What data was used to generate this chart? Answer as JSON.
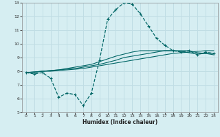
{
  "xlabel": "Humidex (Indice chaleur)",
  "background_color": "#d6eef2",
  "grid_color": "#c0dde4",
  "line_color": "#006666",
  "xlim": [
    -0.5,
    23.5
  ],
  "ylim": [
    5,
    13
  ],
  "xticks": [
    0,
    1,
    2,
    3,
    4,
    5,
    6,
    7,
    8,
    9,
    10,
    11,
    12,
    13,
    14,
    15,
    16,
    17,
    18,
    19,
    20,
    21,
    22,
    23
  ],
  "yticks": [
    5,
    6,
    7,
    8,
    9,
    10,
    11,
    12,
    13
  ],
  "series1_x": [
    0,
    1,
    2,
    3,
    4,
    5,
    6,
    7,
    8,
    9,
    10,
    11,
    12,
    13,
    14,
    15,
    16,
    17,
    18,
    19,
    20,
    21,
    22,
    23
  ],
  "series1_y": [
    7.9,
    7.8,
    7.9,
    7.5,
    6.1,
    6.4,
    6.3,
    5.5,
    6.4,
    8.8,
    11.8,
    12.5,
    13.0,
    12.9,
    12.2,
    11.3,
    10.4,
    9.9,
    9.5,
    9.4,
    9.5,
    9.2,
    9.4,
    9.3
  ],
  "series2_x": [
    0,
    1,
    2,
    3,
    4,
    5,
    6,
    7,
    8,
    9,
    10,
    11,
    12,
    13,
    14,
    15,
    16,
    17,
    18,
    19,
    20,
    21,
    22,
    23
  ],
  "series2_y": [
    7.9,
    7.9,
    8.0,
    8.0,
    8.05,
    8.1,
    8.15,
    8.2,
    8.3,
    8.4,
    8.5,
    8.6,
    8.7,
    8.8,
    8.9,
    9.0,
    9.1,
    9.2,
    9.3,
    9.35,
    9.4,
    9.45,
    9.5,
    9.5
  ],
  "series3_x": [
    0,
    1,
    2,
    3,
    4,
    5,
    6,
    7,
    8,
    9,
    10,
    11,
    12,
    13,
    14,
    15,
    16,
    17,
    18,
    19,
    20,
    21,
    22,
    23
  ],
  "series3_y": [
    7.9,
    7.95,
    8.0,
    8.05,
    8.1,
    8.15,
    8.2,
    8.3,
    8.4,
    8.5,
    8.65,
    8.8,
    9.0,
    9.1,
    9.2,
    9.3,
    9.4,
    9.5,
    9.5,
    9.5,
    9.5,
    9.35,
    9.3,
    9.2
  ],
  "series4_x": [
    0,
    1,
    2,
    3,
    4,
    5,
    6,
    7,
    8,
    9,
    10,
    11,
    12,
    13,
    14,
    15,
    16,
    17,
    18,
    19,
    20,
    21,
    22,
    23
  ],
  "series4_y": [
    7.9,
    7.95,
    8.0,
    8.05,
    8.1,
    8.2,
    8.3,
    8.4,
    8.5,
    8.7,
    8.9,
    9.1,
    9.25,
    9.4,
    9.5,
    9.5,
    9.5,
    9.5,
    9.5,
    9.45,
    9.35,
    9.25,
    9.3,
    9.3
  ]
}
